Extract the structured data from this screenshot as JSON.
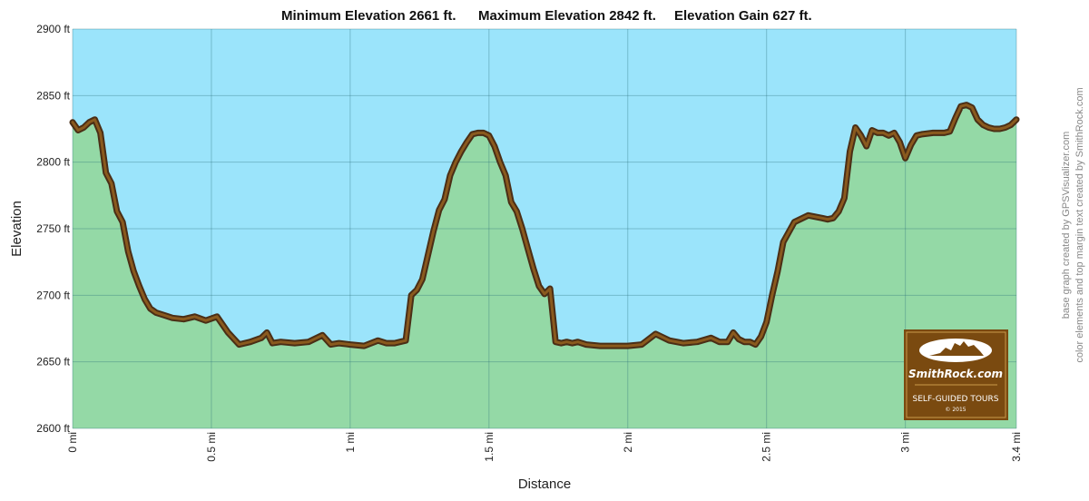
{
  "chart_data": {
    "type": "area",
    "title_parts": [
      "Minimum Elevation  2661 ft.",
      "Maximum Elevation 2842 ft.",
      "Elevation Gain 627 ft."
    ],
    "xlabel": "Distance",
    "ylabel": "Elevation",
    "xlim": [
      0,
      3.4
    ],
    "ylim": [
      2600,
      2900
    ],
    "x_ticks": [
      0,
      0.5,
      1,
      1.5,
      2,
      2.5,
      3,
      3.4
    ],
    "x_tick_labels": [
      "0 mi",
      "0.5 mi",
      "1 mi",
      "1.5 mi",
      "2 mi",
      "2.5 mi",
      "3 mi",
      "3.4 mi"
    ],
    "y_ticks": [
      2600,
      2650,
      2700,
      2750,
      2800,
      2850,
      2900
    ],
    "y_tick_labels": [
      "2600 ft",
      "2650 ft",
      "2700 ft",
      "2750 ft",
      "2800 ft",
      "2850 ft",
      "2900 ft"
    ],
    "grid": true,
    "sky_color": "#9be4fb",
    "ground_color": "#94d9a6",
    "line_outer_color": "#4a2e16",
    "line_inner_color": "#8a5a1e",
    "series": [
      {
        "name": "Elevation",
        "x": [
          0,
          0.02,
          0.04,
          0.06,
          0.08,
          0.1,
          0.12,
          0.14,
          0.16,
          0.18,
          0.2,
          0.22,
          0.24,
          0.26,
          0.28,
          0.3,
          0.33,
          0.36,
          0.4,
          0.44,
          0.48,
          0.52,
          0.56,
          0.6,
          0.64,
          0.68,
          0.7,
          0.72,
          0.75,
          0.8,
          0.85,
          0.9,
          0.93,
          0.96,
          1.0,
          1.05,
          1.1,
          1.13,
          1.16,
          1.2,
          1.22,
          1.24,
          1.26,
          1.28,
          1.3,
          1.32,
          1.34,
          1.36,
          1.38,
          1.4,
          1.42,
          1.44,
          1.46,
          1.48,
          1.5,
          1.52,
          1.54,
          1.56,
          1.58,
          1.6,
          1.62,
          1.64,
          1.66,
          1.68,
          1.7,
          1.72,
          1.74,
          1.76,
          1.78,
          1.8,
          1.82,
          1.85,
          1.9,
          1.95,
          2.0,
          2.05,
          2.1,
          2.15,
          2.2,
          2.25,
          2.3,
          2.33,
          2.36,
          2.38,
          2.4,
          2.42,
          2.44,
          2.46,
          2.48,
          2.5,
          2.52,
          2.54,
          2.56,
          2.6,
          2.65,
          2.7,
          2.72,
          2.74,
          2.76,
          2.78,
          2.8,
          2.82,
          2.84,
          2.86,
          2.88,
          2.9,
          2.92,
          2.94,
          2.96,
          2.98,
          3.0,
          3.02,
          3.04,
          3.06,
          3.1,
          3.14,
          3.16,
          3.18,
          3.2,
          3.22,
          3.24,
          3.26,
          3.28,
          3.3,
          3.32,
          3.34,
          3.36,
          3.38,
          3.4
        ],
        "y": [
          2830,
          2824,
          2826,
          2830,
          2832,
          2822,
          2792,
          2784,
          2763,
          2755,
          2733,
          2718,
          2707,
          2697,
          2690,
          2687,
          2685,
          2683,
          2682,
          2684,
          2681,
          2684,
          2672,
          2663,
          2665,
          2668,
          2672,
          2664,
          2665,
          2664,
          2665,
          2670,
          2663,
          2664,
          2663,
          2662,
          2666,
          2664,
          2664,
          2666,
          2700,
          2704,
          2712,
          2730,
          2748,
          2764,
          2772,
          2790,
          2800,
          2808,
          2815,
          2821,
          2822,
          2822,
          2820,
          2812,
          2800,
          2790,
          2770,
          2763,
          2750,
          2735,
          2720,
          2707,
          2701,
          2705,
          2665,
          2664,
          2665,
          2664,
          2665,
          2663,
          2662,
          2662,
          2662,
          2663,
          2671,
          2666,
          2664,
          2665,
          2668,
          2665,
          2665,
          2672,
          2667,
          2665,
          2665,
          2663,
          2669,
          2680,
          2700,
          2718,
          2740,
          2755,
          2760,
          2758,
          2757,
          2758,
          2763,
          2773,
          2808,
          2826,
          2820,
          2812,
          2824,
          2822,
          2822,
          2820,
          2822,
          2815,
          2803,
          2813,
          2820,
          2821,
          2822,
          2822,
          2823,
          2833,
          2842,
          2843,
          2841,
          2832,
          2828,
          2826,
          2825,
          2825,
          2826,
          2828,
          2832
        ]
      }
    ]
  },
  "logo": {
    "brand": "SmithRock.com",
    "tagline": "SELF-GUIDED TOURS",
    "copyright": "© 2015",
    "background_color": "#7a4a10"
  },
  "credits": {
    "line1": "base graph created by GPSVisualizer.com",
    "line2": "color elements and top margin text created by SmithRock.com"
  }
}
